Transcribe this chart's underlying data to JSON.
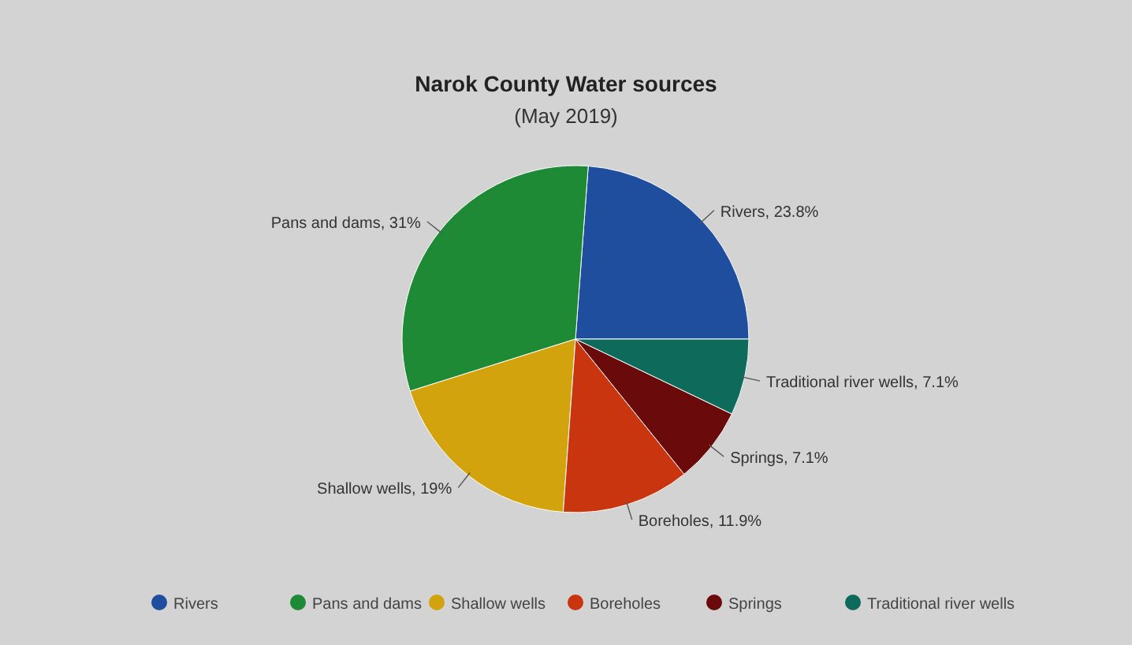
{
  "chart_data": {
    "type": "pie",
    "title": "Narok County Water sources",
    "subtitle": "(May 2019)",
    "categories": [
      "Rivers",
      "Pans and dams",
      "Shallow wells",
      "Boreholes",
      "Springs",
      "Traditional river wells"
    ],
    "values": [
      23.8,
      31,
      19,
      11.9,
      7.1,
      7.1
    ],
    "value_labels": [
      "Rivers, 23.8%",
      "Pans and dams, 31%",
      "Shallow wells, 19%",
      "Boreholes, 11.9%",
      "Springs, 7.1%",
      "Traditional river wells, 7.1%"
    ],
    "colors": [
      "#1f4e9e",
      "#1f8a35",
      "#d2a30c",
      "#c9350f",
      "#6a0a0a",
      "#0e6b5c"
    ],
    "legend": "bottom"
  }
}
